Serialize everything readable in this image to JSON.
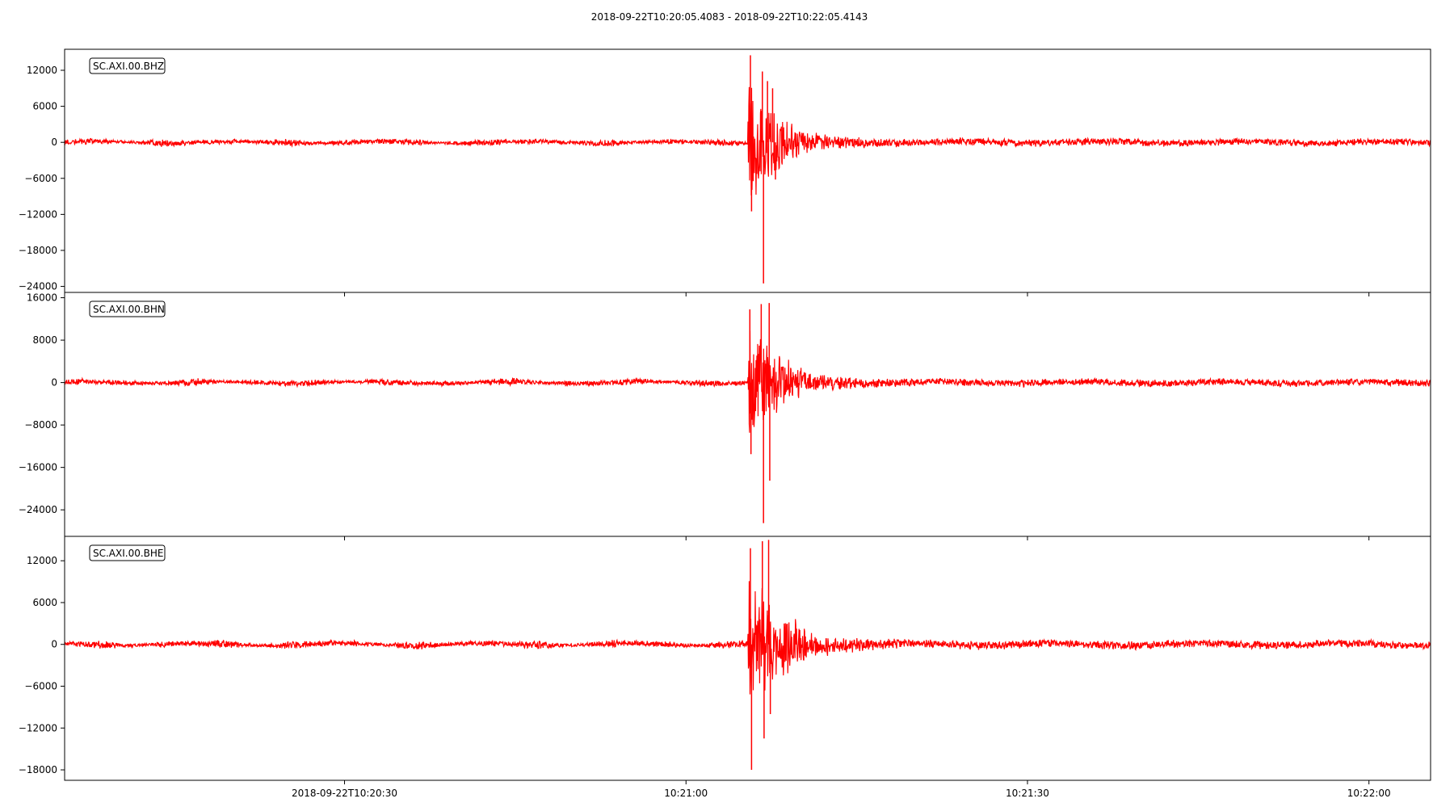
{
  "chart_data": {
    "type": "line",
    "title": "2018-09-22T10:20:05.4083  -  2018-09-22T10:22:05.4143",
    "start_time": "2018-09-22T10:20:05.4083",
    "end_time": "2018-09-22T10:22:05.4143",
    "x_unit": "seconds",
    "xlim": [
      0,
      120.006
    ],
    "x_ticks": [
      {
        "t": 24.5917,
        "label": "2018-09-22T10:20:30"
      },
      {
        "t": 54.5917,
        "label": "10:21:00"
      },
      {
        "t": 84.5917,
        "label": "10:21:30"
      },
      {
        "t": 114.5917,
        "label": "10:22:00"
      }
    ],
    "line_color": "#ff0000",
    "grid": false,
    "series": [
      {
        "name": "SC.AXI.00.BHZ",
        "ylim": [
          -25000,
          15500
        ],
        "y_ticks": [
          12000,
          6000,
          0,
          -6000,
          -12000,
          -18000,
          -24000
        ],
        "noise_amplitude": 600,
        "envelope": [
          [
            0,
            0
          ],
          [
            60,
            0
          ],
          [
            60.1,
            11000
          ],
          [
            61,
            9000
          ],
          [
            62.5,
            6000
          ],
          [
            64,
            3200
          ],
          [
            66,
            1500
          ],
          [
            70,
            900
          ],
          [
            75,
            650
          ],
          [
            120,
            600
          ]
        ],
        "peaks": [
          {
            "t": 60.25,
            "value": 14500
          },
          {
            "t": 60.35,
            "value": -11500
          },
          {
            "t": 61.3,
            "value": 11800
          },
          {
            "t": 61.4,
            "value": -23500
          },
          {
            "t": 61.75,
            "value": 10200
          },
          {
            "t": 62.2,
            "value": 9000
          },
          {
            "t": 62.45,
            "value": -6200
          }
        ]
      },
      {
        "name": "SC.AXI.00.BHN",
        "ylim": [
          -29000,
          17000
        ],
        "y_ticks": [
          16000,
          8000,
          0,
          -8000,
          -16000,
          -24000
        ],
        "noise_amplitude": 700,
        "envelope": [
          [
            0,
            0
          ],
          [
            60,
            0
          ],
          [
            60.1,
            11000
          ],
          [
            61,
            10500
          ],
          [
            62.5,
            7000
          ],
          [
            64,
            3800
          ],
          [
            66,
            1900
          ],
          [
            70,
            1000
          ],
          [
            75,
            750
          ],
          [
            120,
            700
          ]
        ],
        "peaks": [
          {
            "t": 60.2,
            "value": 13800
          },
          {
            "t": 60.3,
            "value": -13500
          },
          {
            "t": 61.2,
            "value": 14800
          },
          {
            "t": 61.4,
            "value": -26500
          },
          {
            "t": 61.9,
            "value": 15000
          },
          {
            "t": 61.95,
            "value": -18500
          }
        ]
      },
      {
        "name": "SC.AXI.00.BHE",
        "ylim": [
          -19500,
          15500
        ],
        "y_ticks": [
          12000,
          6000,
          0,
          -6000,
          -12000,
          -18000
        ],
        "noise_amplitude": 600,
        "envelope": [
          [
            0,
            0
          ],
          [
            60,
            0
          ],
          [
            60.1,
            10000
          ],
          [
            61,
            9000
          ],
          [
            62.5,
            6500
          ],
          [
            64,
            4000
          ],
          [
            66,
            2000
          ],
          [
            70,
            1000
          ],
          [
            75,
            700
          ],
          [
            120,
            600
          ]
        ],
        "peaks": [
          {
            "t": 60.25,
            "value": 13800
          },
          {
            "t": 60.35,
            "value": -18000
          },
          {
            "t": 61.3,
            "value": 14800
          },
          {
            "t": 61.45,
            "value": -13500
          },
          {
            "t": 61.85,
            "value": 15000
          },
          {
            "t": 62.0,
            "value": -10000
          }
        ]
      }
    ]
  }
}
